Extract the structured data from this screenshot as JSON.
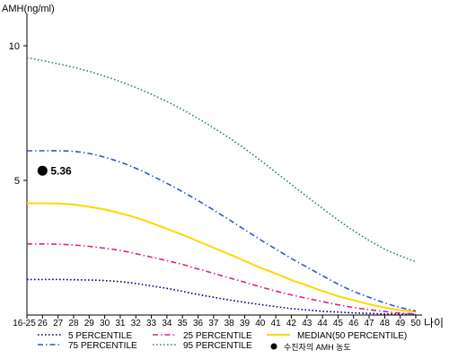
{
  "chart_data": {
    "type": "line",
    "ylabel": "AMH(ng/ml)",
    "xlabel": "나이",
    "ylim": [
      0,
      11
    ],
    "yticks": [
      5,
      10
    ],
    "categories": [
      "16-25",
      "26",
      "27",
      "28",
      "29",
      "30",
      "31",
      "32",
      "33",
      "34",
      "35",
      "36",
      "37",
      "38",
      "39",
      "40",
      "41",
      "42",
      "43",
      "44",
      "45",
      "46",
      "47",
      "48",
      "49",
      "50"
    ],
    "series": [
      {
        "name": "5 PERCENTILE",
        "color": "#000080",
        "style": "dotted",
        "values": [
          1.32,
          1.32,
          1.32,
          1.31,
          1.3,
          1.28,
          1.24,
          1.17,
          1.08,
          0.99,
          0.88,
          0.76,
          0.66,
          0.56,
          0.47,
          0.39,
          0.31,
          0.24,
          0.19,
          0.14,
          0.11,
          0.08,
          0.06,
          0.04,
          0.03,
          0.02
        ]
      },
      {
        "name": "25 PERCENTILE",
        "color": "#e0218a",
        "style": "dashdot",
        "values": [
          2.64,
          2.64,
          2.63,
          2.6,
          2.55,
          2.48,
          2.4,
          2.28,
          2.15,
          2.02,
          1.88,
          1.71,
          1.55,
          1.38,
          1.22,
          1.05,
          0.89,
          0.75,
          0.62,
          0.5,
          0.38,
          0.28,
          0.2,
          0.13,
          0.07,
          0.04
        ]
      },
      {
        "name": "MEDIAN(50 PERCENTILE)",
        "color": "#ffd700",
        "style": "solid",
        "values": [
          4.15,
          4.15,
          4.14,
          4.1,
          4.02,
          3.92,
          3.78,
          3.62,
          3.42,
          3.2,
          2.98,
          2.74,
          2.5,
          2.26,
          2.01,
          1.76,
          1.54,
          1.3,
          1.1,
          0.89,
          0.7,
          0.55,
          0.4,
          0.28,
          0.18,
          0.12
        ]
      },
      {
        "name": "75 PERCENTILE",
        "color": "#3355cc",
        "style": "dashdot",
        "values": [
          6.1,
          6.1,
          6.1,
          6.08,
          6.0,
          5.86,
          5.68,
          5.45,
          5.18,
          4.89,
          4.58,
          4.25,
          3.9,
          3.54,
          3.17,
          2.8,
          2.45,
          2.1,
          1.78,
          1.46,
          1.15,
          0.88,
          0.66,
          0.45,
          0.28,
          0.15
        ]
      },
      {
        "name": "95 PERCENTILE",
        "color": "#2e8b57",
        "style": "dotted",
        "values": [
          9.55,
          9.45,
          9.33,
          9.2,
          9.05,
          8.87,
          8.67,
          8.45,
          8.2,
          7.93,
          7.63,
          7.3,
          6.95,
          6.58,
          6.18,
          5.75,
          5.3,
          4.85,
          4.4,
          3.96,
          3.53,
          3.13,
          2.77,
          2.45,
          2.2,
          1.98
        ]
      }
    ],
    "marker": {
      "name": "수진자의 AMH 농도",
      "x": "26",
      "y": 5.36,
      "label": "5.36",
      "color": "#000000"
    },
    "grid": false,
    "legend_position": "bottom"
  }
}
